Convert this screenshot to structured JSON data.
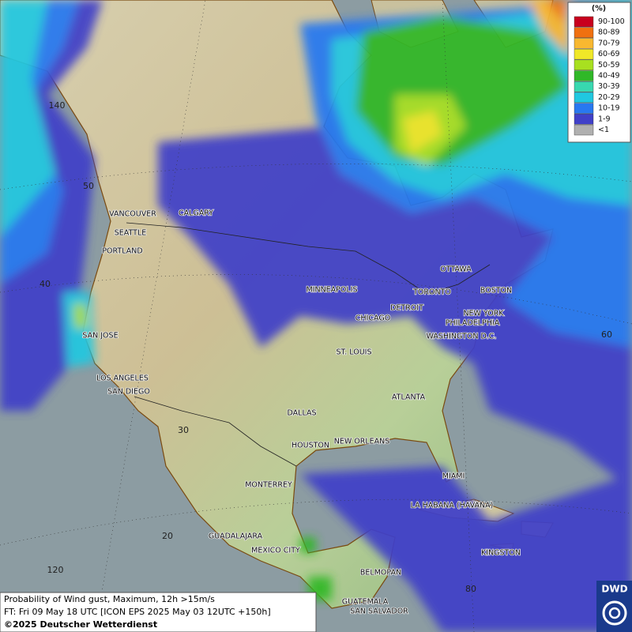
{
  "legend": {
    "title": "(%)",
    "items": [
      {
        "label": "90-100",
        "color": "#c8001e"
      },
      {
        "label": "80-89",
        "color": "#f07010"
      },
      {
        "label": "70-79",
        "color": "#f8b830"
      },
      {
        "label": "60-69",
        "color": "#f0e828"
      },
      {
        "label": "50-59",
        "color": "#a8e020"
      },
      {
        "label": "40-49",
        "color": "#30b828"
      },
      {
        "label": "30-39",
        "color": "#38d8b0"
      },
      {
        "label": "20-29",
        "color": "#20c8e0"
      },
      {
        "label": "10-19",
        "color": "#2878f0"
      },
      {
        "label": "1-9",
        "color": "#4040c8"
      },
      {
        "label": "<1",
        "color": "#b0b0b0"
      }
    ]
  },
  "cities": [
    "VANCOUVER",
    "CALGARY",
    "SEATTLE",
    "PORTLAND",
    "MINNEAPOLIS",
    "OTTAWA",
    "TORONTO",
    "BOSTON",
    "DETROIT",
    "CHICAGO",
    "NEW YORK",
    "PHILADELPHIA",
    "WASHINGTON D.C.",
    "SAN JOSE",
    "ST. LOUIS",
    "LOS ANGELES",
    "SAN DIEGO",
    "ATLANTA",
    "DALLAS",
    "HOUSTON",
    "NEW ORLEANS",
    "MIAMI",
    "MONTERREY",
    "LA HABANA (HAVANA)",
    "GUADALAJARA",
    "MEXICO CITY",
    "KINGSTON",
    "BELMOPAN",
    "GUATEMALA",
    "SAN SALVADOR"
  ],
  "graticule": [
    "140",
    "50",
    "40",
    "60",
    "30",
    "20",
    "120",
    "80"
  ],
  "footer": {
    "line1": "Probability of Wind gust, Maximum, 12h >15m/s",
    "line2": "FT: Fri 09 May 18 UTC [ICON EPS 2025 May 03 12UTC +150h]",
    "line3": "©2025 Deutscher Wetterdienst"
  },
  "logo": "DWD"
}
